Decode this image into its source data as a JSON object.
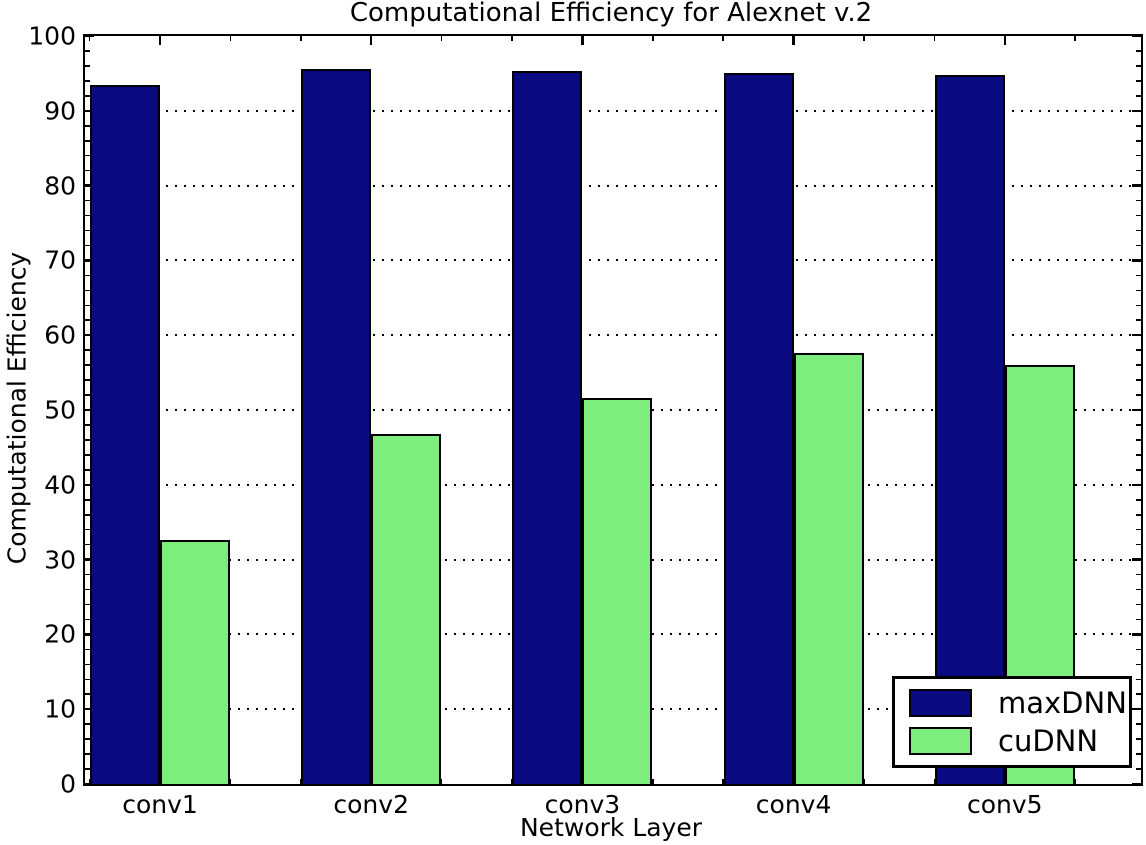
{
  "chart_data": {
    "type": "bar",
    "title": "Computational Efficiency for Alexnet v.2",
    "xlabel": "Network Layer",
    "ylabel": "Computational Efficiency",
    "categories": [
      "conv1",
      "conv2",
      "conv3",
      "conv4",
      "conv5"
    ],
    "series": [
      {
        "name": "maxDNN",
        "color": "#0a0a80",
        "values": [
          93.5,
          95.6,
          95.3,
          95.1,
          94.8
        ]
      },
      {
        "name": "cuDNN",
        "color": "#7dee7d",
        "values": [
          32.6,
          46.8,
          51.6,
          57.6,
          56.0
        ]
      }
    ],
    "ylim": [
      0,
      100
    ],
    "ytick_labels": [
      "0",
      "10",
      "20",
      "30",
      "40",
      "50",
      "60",
      "70",
      "80",
      "90",
      "100"
    ],
    "ytick_major_step": 10,
    "ytick_minor_step": 2,
    "gridlines_at": [
      10,
      20,
      30,
      40,
      50,
      60,
      70,
      80,
      90
    ],
    "grid_style": "dotted",
    "bar_edge_color": "#000000",
    "axis_color": "#000000",
    "background_color": "#ffffff",
    "legend": {
      "position": "lower right",
      "entries": [
        "maxDNN",
        "cuDNN"
      ]
    }
  }
}
